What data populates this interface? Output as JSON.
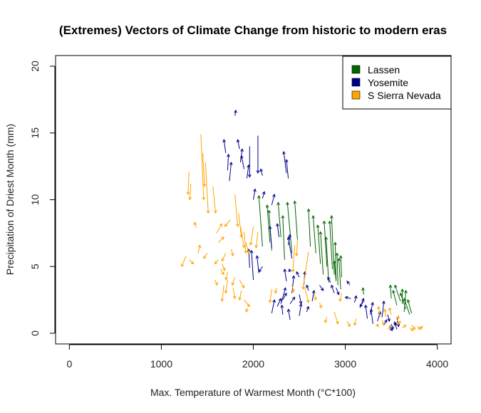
{
  "chart_data": {
    "type": "vector",
    "title": "(Extremes) Vectors of Climate Change from historic to modern eras",
    "xlabel": "Max. Temperature of Warmest Month (°C*100)",
    "ylabel": "Precipitation of Driest Month (mm)",
    "xlim": [
      -150,
      4150
    ],
    "ylim": [
      -0.8,
      20.8
    ],
    "xticks": [
      0,
      1000,
      2000,
      3000,
      4000
    ],
    "yticks": [
      0,
      5,
      10,
      15,
      20
    ],
    "legend_position": "top-right",
    "series": [
      {
        "name": "Lassen",
        "color": "#006400",
        "vectors": [
          [
            2100,
            6.5,
            2060,
            10.3
          ],
          [
            2180,
            6.8,
            2150,
            9.6
          ],
          [
            2200,
            6.2,
            2170,
            9.2
          ],
          [
            2300,
            7.2,
            2270,
            9.8
          ],
          [
            2340,
            5.5,
            2320,
            8.8
          ],
          [
            2420,
            6.0,
            2370,
            9.8
          ],
          [
            2480,
            7.0,
            2450,
            9.9
          ],
          [
            2620,
            6.5,
            2600,
            9.3
          ],
          [
            2680,
            6.0,
            2650,
            8.8
          ],
          [
            2730,
            5.2,
            2700,
            8.1
          ],
          [
            2760,
            4.4,
            2730,
            7.6
          ],
          [
            2800,
            5.0,
            2770,
            8.4
          ],
          [
            2820,
            3.8,
            2790,
            7.2
          ],
          [
            2860,
            4.8,
            2830,
            8.4
          ],
          [
            2880,
            4.4,
            2850,
            8.8
          ],
          [
            2900,
            4.0,
            2890,
            6.8
          ],
          [
            2920,
            3.6,
            2910,
            6.0
          ],
          [
            2950,
            3.3,
            2930,
            5.6
          ],
          [
            2960,
            4.2,
            2950,
            5.8
          ],
          [
            2900,
            3.9,
            2880,
            5.4
          ],
          [
            3200,
            2.9,
            3190,
            3.4
          ],
          [
            3600,
            2.4,
            3540,
            3.6
          ],
          [
            3620,
            2.2,
            3620,
            3.3
          ],
          [
            3640,
            1.6,
            3660,
            3.2
          ],
          [
            3660,
            1.8,
            3600,
            3.0
          ],
          [
            3700,
            1.4,
            3640,
            2.6
          ],
          [
            3720,
            1.5,
            3680,
            2.5
          ],
          [
            3560,
            2.1,
            3520,
            3.2
          ],
          [
            3500,
            2.6,
            3490,
            3.6
          ]
        ]
      },
      {
        "name": "Yosemite",
        "color": "#00008B",
        "vectors": [
          [
            1800,
            16.3,
            1810,
            16.7
          ],
          [
            1700,
            13.5,
            1680,
            14.5
          ],
          [
            1720,
            12.2,
            1730,
            13.4
          ],
          [
            1740,
            11.4,
            1760,
            12.8
          ],
          [
            1850,
            13.8,
            1830,
            14.5
          ],
          [
            1860,
            12.8,
            1880,
            13.8
          ],
          [
            1900,
            12.3,
            1870,
            13.3
          ],
          [
            1930,
            11.6,
            1950,
            12.6
          ],
          [
            2050,
            14.8,
            2050,
            12.0
          ],
          [
            1960,
            14.0,
            1960,
            11.7
          ],
          [
            2100,
            11.8,
            2080,
            12.3
          ],
          [
            2360,
            12.0,
            2330,
            13.6
          ],
          [
            2380,
            11.6,
            2360,
            13.0
          ],
          [
            2000,
            10.0,
            2020,
            10.8
          ],
          [
            2100,
            10.1,
            2120,
            10.6
          ],
          [
            2200,
            9.6,
            2230,
            10.4
          ],
          [
            2200,
            6.4,
            2180,
            8.0
          ],
          [
            2280,
            7.2,
            2260,
            8.2
          ],
          [
            2380,
            6.6,
            2400,
            7.4
          ],
          [
            2420,
            5.6,
            2380,
            7.2
          ],
          [
            2000,
            4.0,
            1980,
            6.2
          ],
          [
            1960,
            4.9,
            1950,
            6.3
          ],
          [
            2100,
            5.0,
            2060,
            4.6
          ],
          [
            2060,
            4.5,
            2040,
            5.8
          ],
          [
            2500,
            4.2,
            2470,
            4.6
          ],
          [
            2550,
            3.6,
            2560,
            4.6
          ],
          [
            2600,
            3.2,
            2580,
            3.6
          ],
          [
            2360,
            3.9,
            2340,
            4.8
          ],
          [
            2400,
            4.6,
            2390,
            4.8
          ],
          [
            2420,
            3.0,
            2440,
            4.3
          ],
          [
            2200,
            1.5,
            2230,
            2.5
          ],
          [
            2260,
            2.0,
            2300,
            2.6
          ],
          [
            2300,
            2.2,
            2350,
            3.4
          ],
          [
            2320,
            1.4,
            2310,
            2.1
          ],
          [
            2400,
            1.0,
            2380,
            1.8
          ],
          [
            2500,
            1.3,
            2520,
            2.2
          ],
          [
            2580,
            1.6,
            2600,
            2.0
          ],
          [
            2320,
            2.5,
            2360,
            3.0
          ],
          [
            2400,
            2.2,
            2450,
            2.7
          ],
          [
            2840,
            3.8,
            2810,
            4.2
          ],
          [
            2880,
            3.0,
            2850,
            3.6
          ],
          [
            2720,
            3.6,
            2760,
            3.2
          ],
          [
            2640,
            2.4,
            2660,
            3.2
          ],
          [
            3050,
            3.6,
            3020,
            3.9
          ],
          [
            3060,
            2.6,
            3000,
            2.7
          ],
          [
            3100,
            2.3,
            3120,
            2.8
          ],
          [
            3160,
            1.9,
            3200,
            2.6
          ],
          [
            3200,
            2.4,
            3160,
            2.0
          ],
          [
            3240,
            1.1,
            3220,
            2.1
          ],
          [
            3270,
            1.4,
            3300,
            2.3
          ],
          [
            3300,
            0.7,
            3280,
            1.8
          ],
          [
            3350,
            0.9,
            3380,
            1.6
          ],
          [
            3400,
            1.2,
            3420,
            2.4
          ],
          [
            3420,
            0.6,
            3450,
            1.0
          ],
          [
            3460,
            1.4,
            3480,
            0.9
          ],
          [
            3500,
            0.7,
            3520,
            0.3
          ],
          [
            3530,
            0.9,
            3550,
            0.6
          ],
          [
            3560,
            1.2,
            3580,
            0.5
          ],
          [
            3480,
            0.5,
            3510,
            0.2
          ],
          [
            3560,
            0.3,
            3540,
            0.8
          ],
          [
            2900,
            3.4,
            2930,
            2.9
          ],
          [
            2500,
            2.9,
            2520,
            2.2
          ]
        ]
      },
      {
        "name": "S Sierra Nevada",
        "color": "#FFA500",
        "vectors": [
          [
            1430,
            14.9,
            1460,
            10.0
          ],
          [
            1450,
            13.5,
            1470,
            11.0
          ],
          [
            1480,
            12.8,
            1510,
            9.0
          ],
          [
            1300,
            12.1,
            1290,
            10.4
          ],
          [
            1320,
            11.2,
            1310,
            10.0
          ],
          [
            1560,
            11.0,
            1590,
            9.0
          ],
          [
            1380,
            7.9,
            1360,
            8.3
          ],
          [
            1400,
            6.0,
            1420,
            6.6
          ],
          [
            1270,
            5.8,
            1220,
            5.0
          ],
          [
            1300,
            5.5,
            1350,
            5.2
          ],
          [
            1500,
            6.0,
            1460,
            5.6
          ],
          [
            1600,
            7.5,
            1660,
            8.2
          ],
          [
            1620,
            6.8,
            1680,
            7.2
          ],
          [
            1750,
            8.5,
            1690,
            8.0
          ],
          [
            1760,
            6.3,
            1780,
            5.8
          ],
          [
            1700,
            6.0,
            1660,
            5.4
          ],
          [
            1620,
            5.5,
            1580,
            5.2
          ],
          [
            1640,
            4.8,
            1680,
            4.4
          ],
          [
            1720,
            4.6,
            1700,
            4.0
          ],
          [
            1680,
            3.6,
            1660,
            2.4
          ],
          [
            1720,
            4.0,
            1700,
            3.0
          ],
          [
            1780,
            3.4,
            1800,
            2.6
          ],
          [
            1800,
            4.2,
            1770,
            3.6
          ],
          [
            1850,
            4.0,
            1900,
            3.4
          ],
          [
            1870,
            3.2,
            1850,
            2.5
          ],
          [
            1900,
            2.5,
            1960,
            2.0
          ],
          [
            1940,
            1.9,
            1920,
            1.6
          ],
          [
            1800,
            10.4,
            1830,
            8.0
          ],
          [
            1840,
            9.0,
            1870,
            7.2
          ],
          [
            1860,
            8.0,
            1900,
            6.4
          ],
          [
            1900,
            7.6,
            1920,
            6.0
          ],
          [
            1920,
            6.8,
            1950,
            6.0
          ],
          [
            2000,
            8.0,
            1970,
            6.6
          ],
          [
            2050,
            7.6,
            2030,
            6.4
          ],
          [
            2200,
            3.3,
            2180,
            2.3
          ],
          [
            2250,
            3.4,
            2240,
            3.0
          ],
          [
            2450,
            6.6,
            2430,
            4.6
          ],
          [
            2480,
            7.0,
            2470,
            5.8
          ],
          [
            2600,
            6.1,
            2540,
            3.3
          ],
          [
            2560,
            3.4,
            2600,
            2.3
          ],
          [
            2660,
            3.0,
            2680,
            2.5
          ],
          [
            2720,
            2.3,
            2740,
            1.9
          ],
          [
            2800,
            1.2,
            2780,
            0.8
          ],
          [
            2960,
            3.0,
            2940,
            2.4
          ],
          [
            2880,
            1.6,
            2920,
            0.7
          ],
          [
            3020,
            0.9,
            3050,
            0.5
          ],
          [
            3120,
            1.1,
            3100,
            0.6
          ],
          [
            3340,
            0.7,
            3360,
            0.5
          ],
          [
            3400,
            1.0,
            3420,
            0.6
          ],
          [
            3460,
            0.3,
            3500,
            0.6
          ],
          [
            3560,
            0.6,
            3600,
            0.9
          ],
          [
            3620,
            0.4,
            3660,
            0.6
          ],
          [
            3700,
            0.4,
            3740,
            0.2
          ],
          [
            3720,
            0.6,
            3760,
            0.3
          ],
          [
            3780,
            0.5,
            3820,
            0.3
          ],
          [
            3800,
            0.3,
            3840,
            0.5
          ],
          [
            3440,
            1.2,
            3430,
            1.8
          ],
          [
            3500,
            1.4,
            3480,
            1.9
          ],
          [
            3380,
            1.2,
            3360,
            2.0
          ],
          [
            3560,
            0.8,
            3580,
            1.3
          ],
          [
            2420,
            3.6,
            2440,
            3.1
          ],
          [
            1660,
            5.2,
            1690,
            4.7
          ],
          [
            1580,
            4.0,
            1610,
            3.6
          ]
        ]
      }
    ]
  }
}
